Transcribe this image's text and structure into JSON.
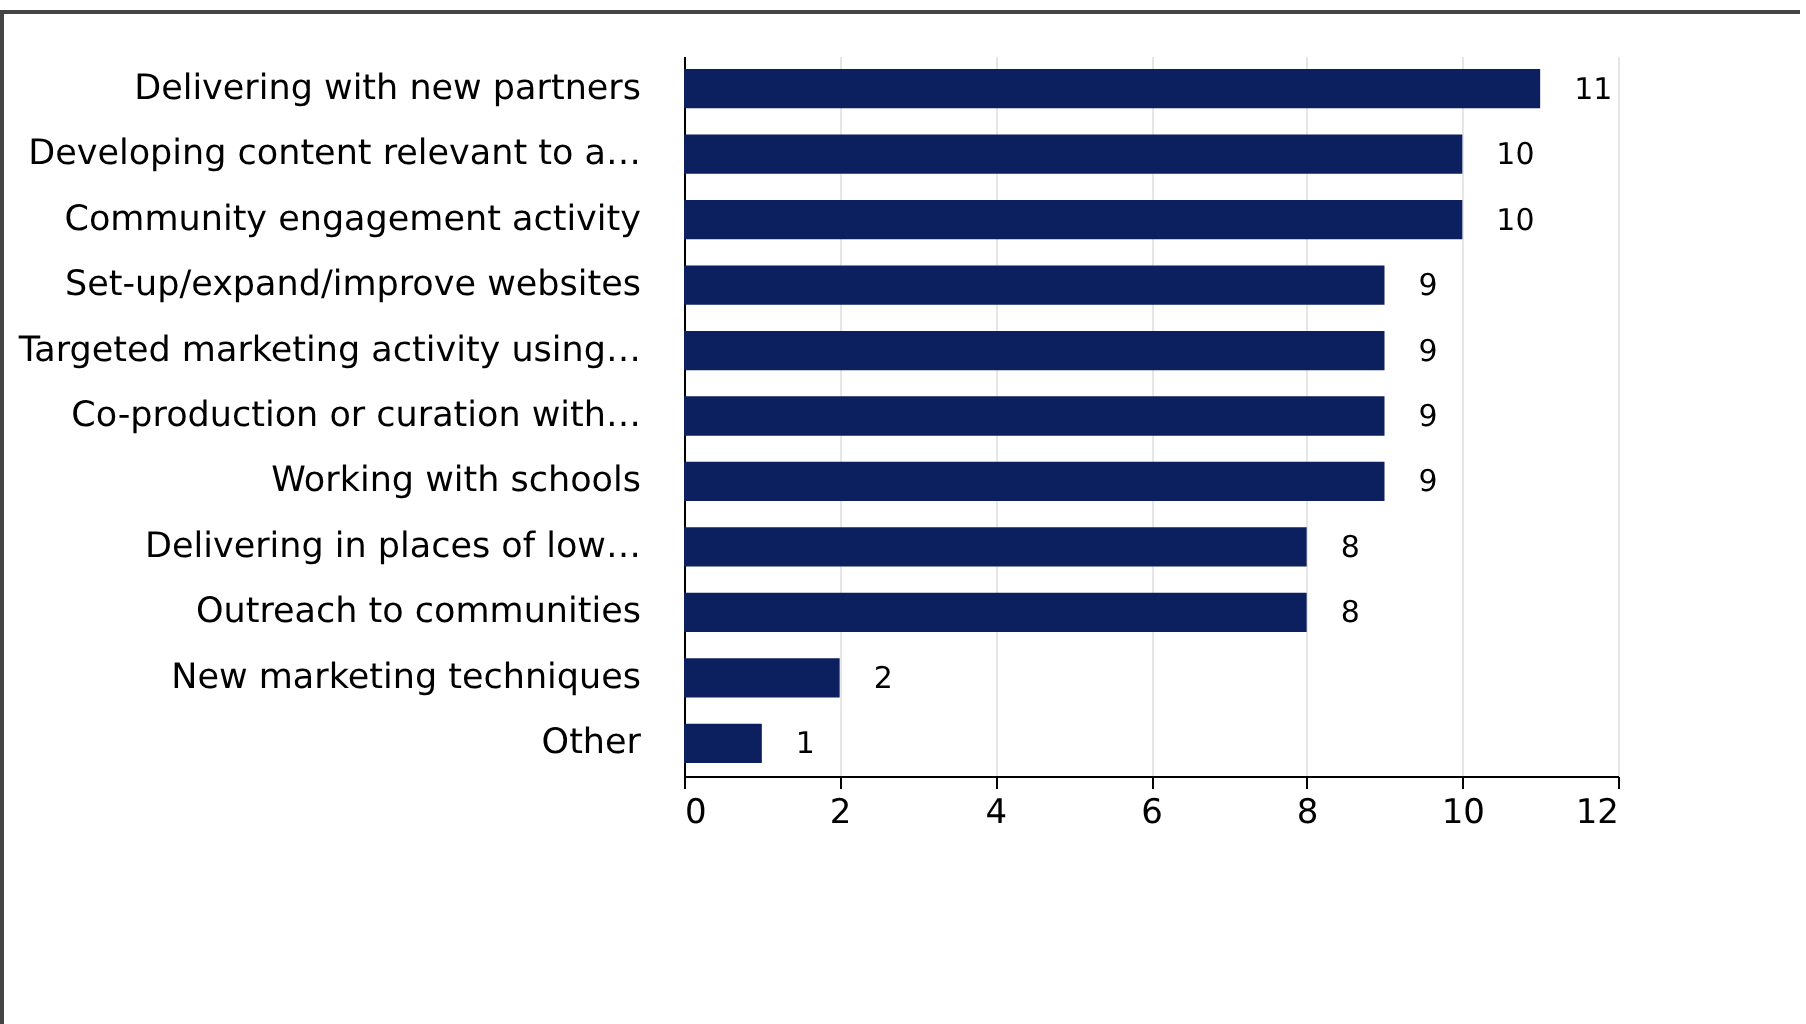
{
  "chart_data": {
    "type": "bar",
    "orientation": "horizontal",
    "categories": [
      "Delivering with new partners",
      "Developing content relevant to a…",
      "Community engagement activity",
      "Set-up/expand/improve websites",
      "Targeted marketing activity using…",
      "Co-production or curation with…",
      "Working with schools",
      "Delivering in places of low…",
      "Outreach to communities",
      "New marketing techniques",
      "Other"
    ],
    "values": [
      11,
      10,
      10,
      9,
      9,
      9,
      9,
      8,
      8,
      2,
      1
    ],
    "color": "#0c1f5e",
    "xlim": [
      0,
      12
    ],
    "xticks": [
      0,
      2,
      4,
      6,
      8,
      10,
      12
    ],
    "grid": "x",
    "data_labels": true
  }
}
